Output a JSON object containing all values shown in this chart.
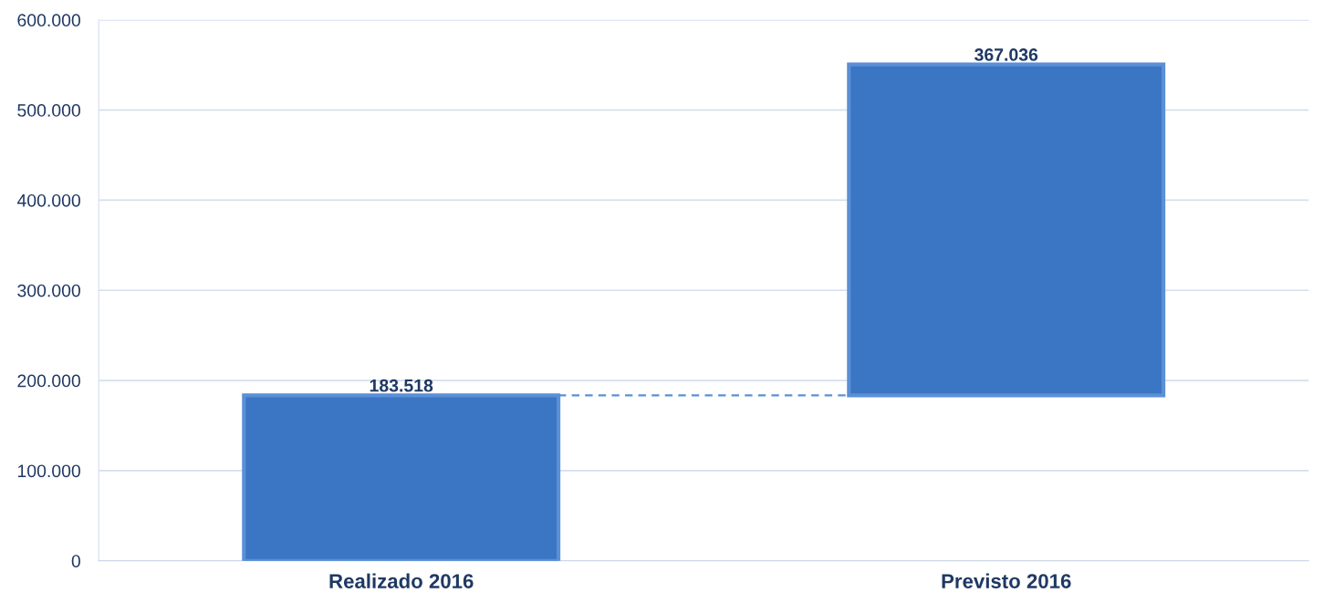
{
  "chart_data": {
    "type": "bar",
    "categories": [
      "Realizado 2016",
      "Previsto 2016"
    ],
    "values": [
      183518,
      367036
    ],
    "base": [
      0,
      183518
    ],
    "value_labels": [
      "183.518",
      "367.036"
    ],
    "color": "#3a76c4",
    "ylim": [
      0,
      600000
    ],
    "yticks": [
      {
        "value": 0,
        "label": "0"
      },
      {
        "value": 100000,
        "label": "100.000"
      },
      {
        "value": 200000,
        "label": "200.000"
      },
      {
        "value": 300000,
        "label": "300.000"
      },
      {
        "value": 400000,
        "label": "400.000"
      },
      {
        "value": 500000,
        "label": "500.000"
      },
      {
        "value": 600000,
        "label": "600.000"
      }
    ],
    "ref_lines": [
      {
        "axis": "y",
        "value": 183518,
        "color": "#5b8fd6",
        "line_style": "dashed"
      }
    ],
    "grid": "y"
  }
}
